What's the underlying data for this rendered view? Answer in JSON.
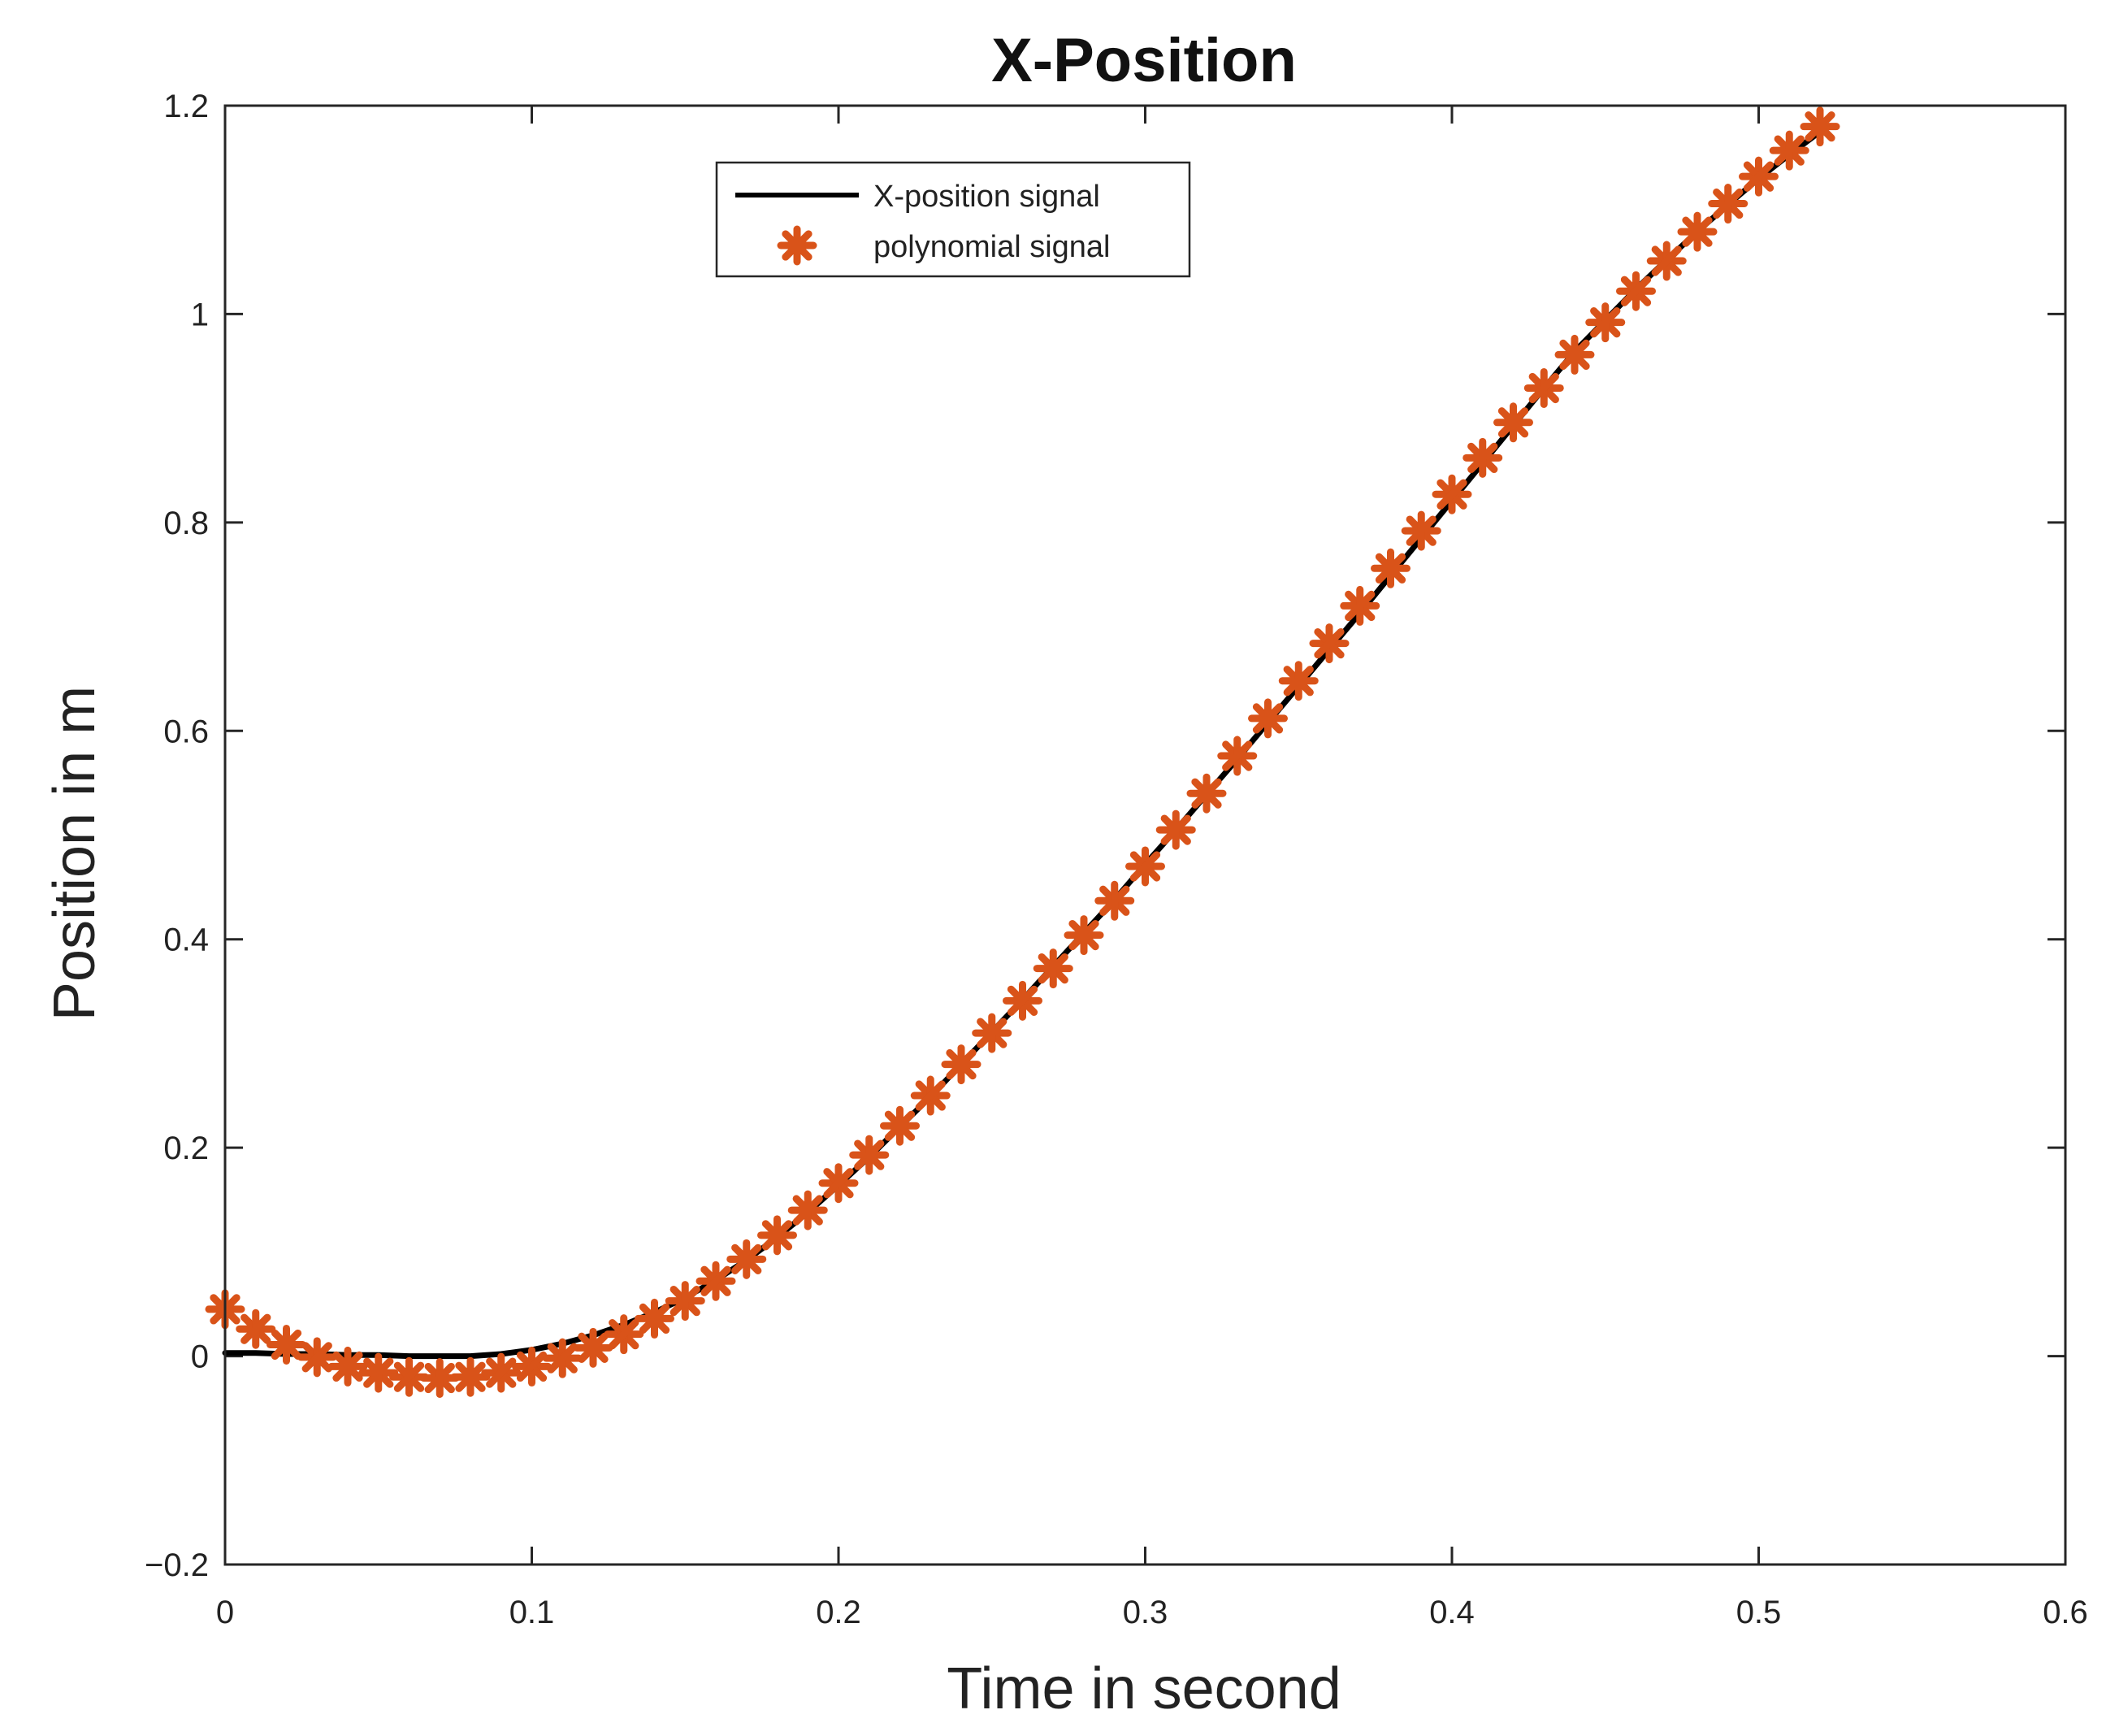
{
  "chart_data": {
    "type": "line",
    "title": "X-Position",
    "xlabel": "Time in second",
    "ylabel": "Position in m",
    "xlim": [
      0,
      0.6
    ],
    "ylim": [
      -0.2,
      1.2
    ],
    "xticks": [
      0,
      0.1,
      0.2,
      0.3,
      0.4,
      0.5,
      0.6
    ],
    "xtick_labels": [
      "0",
      "0.1",
      "0.2",
      "0.3",
      "0.4",
      "0.5",
      "0.6"
    ],
    "yticks": [
      -0.2,
      0,
      0.2,
      0.4,
      0.6,
      0.8,
      1,
      1.2
    ],
    "ytick_labels": [
      "−0.2",
      "0",
      "0.2",
      "0.4",
      "0.6",
      "0.8",
      "1",
      "1.2"
    ],
    "grid": false,
    "legend": {
      "position": "top-center"
    },
    "colors": {
      "signal": "#000000",
      "polynomial": "#d95319"
    },
    "series": [
      {
        "name": "X-position signal",
        "style": "line",
        "x": [
          0,
          0.01,
          0.02,
          0.03,
          0.04,
          0.05,
          0.06,
          0.07,
          0.08,
          0.09,
          0.1,
          0.11,
          0.12,
          0.13,
          0.14,
          0.15,
          0.16,
          0.17,
          0.18,
          0.19,
          0.2,
          0.21,
          0.22,
          0.23,
          0.24,
          0.25,
          0.26,
          0.27,
          0.28,
          0.29,
          0.3,
          0.31,
          0.32,
          0.33,
          0.34,
          0.35,
          0.36,
          0.37,
          0.38,
          0.39,
          0.4,
          0.41,
          0.42,
          0.43,
          0.44,
          0.45,
          0.46,
          0.47,
          0.48,
          0.49,
          0.5,
          0.51,
          0.52
        ],
        "y": [
          0.003,
          0.003,
          0.002,
          0.002,
          0.001,
          0.001,
          0.0,
          0.0,
          0.0,
          0.002,
          0.006,
          0.012,
          0.02,
          0.03,
          0.042,
          0.056,
          0.073,
          0.092,
          0.114,
          0.138,
          0.164,
          0.191,
          0.22,
          0.249,
          0.28,
          0.311,
          0.342,
          0.374,
          0.406,
          0.438,
          0.472,
          0.505,
          0.539,
          0.573,
          0.608,
          0.643,
          0.678,
          0.713,
          0.749,
          0.785,
          0.821,
          0.857,
          0.893,
          0.929,
          0.964,
          0.994,
          1.024,
          1.052,
          1.079,
          1.105,
          1.13,
          1.153,
          1.175
        ]
      },
      {
        "name": "polynomial signal",
        "style": "marker",
        "marker": "asterisk",
        "x": [
          0,
          0.01,
          0.02,
          0.03,
          0.04,
          0.05,
          0.06,
          0.07,
          0.08,
          0.09,
          0.1,
          0.11,
          0.12,
          0.13,
          0.14,
          0.15,
          0.16,
          0.17,
          0.18,
          0.19,
          0.2,
          0.21,
          0.22,
          0.23,
          0.24,
          0.25,
          0.26,
          0.27,
          0.28,
          0.29,
          0.3,
          0.31,
          0.32,
          0.33,
          0.34,
          0.35,
          0.36,
          0.37,
          0.38,
          0.39,
          0.4,
          0.41,
          0.42,
          0.43,
          0.44,
          0.45,
          0.46,
          0.47,
          0.48,
          0.49,
          0.5,
          0.51,
          0.52
        ],
        "y": [
          0.045,
          0.026,
          0.011,
          -0.001,
          -0.01,
          -0.016,
          -0.02,
          -0.021,
          -0.02,
          -0.016,
          -0.01,
          -0.002,
          0.008,
          0.021,
          0.036,
          0.053,
          0.072,
          0.093,
          0.116,
          0.14,
          0.166,
          0.193,
          0.221,
          0.25,
          0.28,
          0.31,
          0.341,
          0.372,
          0.404,
          0.437,
          0.47,
          0.505,
          0.54,
          0.576,
          0.612,
          0.648,
          0.684,
          0.72,
          0.756,
          0.792,
          0.827,
          0.862,
          0.896,
          0.929,
          0.961,
          0.992,
          1.022,
          1.051,
          1.079,
          1.106,
          1.132,
          1.157,
          1.18
        ]
      }
    ]
  }
}
